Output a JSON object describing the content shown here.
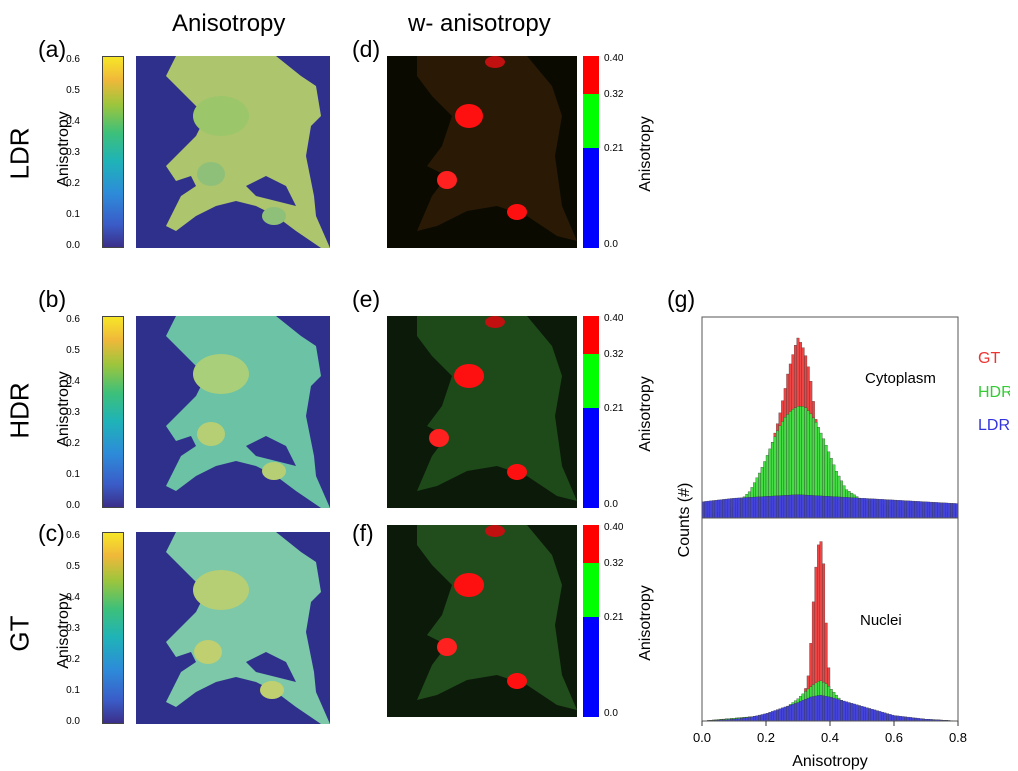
{
  "column_titles": {
    "left": "Anisotropy",
    "middle": "w- anisotropy"
  },
  "row_labels": [
    "LDR",
    "HDR",
    "GT"
  ],
  "panel_labels": {
    "a": "(a)",
    "b": "(b)",
    "c": "(c)",
    "d": "(d)",
    "e": "(e)",
    "f": "(f)",
    "g": "(g)"
  },
  "colorbar_left": {
    "axis_label": "Anisotropy",
    "ticks": [
      "0.6",
      "0.5",
      "0.4",
      "0.3",
      "0.2",
      "0.1",
      "0.0"
    ]
  },
  "colorbar_middle": {
    "axis_label": "Anisotropy",
    "ticks": [
      "0.40",
      "0.32",
      "0.21",
      "0.0"
    ],
    "colors": [
      "#ff0000",
      "#00ff00",
      "#0000ff"
    ]
  },
  "map_colors": {
    "background": "#2f2f8c",
    "ldr_cell": "#b9d36a",
    "hdr_cell": "#6cc2a4",
    "gt_cell": "#7cc8a8",
    "nucleus_ldr": "#c4d48a",
    "nucleus_hdr": "#d6cf78"
  },
  "chart_data": [
    {
      "type": "bar",
      "panel": "(g) top",
      "annotation": "Cytoplasm",
      "xlabel": "Anisotropy",
      "ylabel": "Counts (#)",
      "xlim": [
        0.0,
        0.8
      ],
      "series": [
        {
          "name": "GT",
          "color": "#ee4444",
          "x": [
            0.0,
            0.05,
            0.1,
            0.15,
            0.18,
            0.2,
            0.22,
            0.24,
            0.26,
            0.27,
            0.28,
            0.29,
            0.3,
            0.31,
            0.32,
            0.33,
            0.34,
            0.35,
            0.36,
            0.38,
            0.4,
            0.42,
            0.45,
            0.5,
            0.55,
            0.6,
            0.7,
            0.8
          ],
          "y": [
            0.02,
            0.03,
            0.05,
            0.1,
            0.18,
            0.28,
            0.42,
            0.55,
            0.72,
            0.82,
            0.88,
            0.95,
            1.0,
            0.97,
            0.93,
            0.86,
            0.76,
            0.62,
            0.5,
            0.35,
            0.22,
            0.14,
            0.08,
            0.06,
            0.05,
            0.04,
            0.03,
            0.02
          ]
        },
        {
          "name": "HDR",
          "color": "#44dd44",
          "x": [
            0.0,
            0.05,
            0.1,
            0.15,
            0.18,
            0.2,
            0.22,
            0.24,
            0.26,
            0.28,
            0.3,
            0.32,
            0.34,
            0.36,
            0.38,
            0.4,
            0.42,
            0.45,
            0.5,
            0.55,
            0.6,
            0.7,
            0.8
          ],
          "y": [
            0.02,
            0.03,
            0.06,
            0.15,
            0.25,
            0.33,
            0.42,
            0.5,
            0.56,
            0.6,
            0.62,
            0.62,
            0.58,
            0.52,
            0.44,
            0.35,
            0.26,
            0.16,
            0.1,
            0.08,
            0.06,
            0.04,
            0.03
          ]
        },
        {
          "name": "LDR",
          "color": "#4444dd",
          "x": [
            0.0,
            0.1,
            0.2,
            0.3,
            0.4,
            0.5,
            0.6,
            0.7,
            0.8
          ],
          "y": [
            0.09,
            0.11,
            0.12,
            0.13,
            0.12,
            0.11,
            0.1,
            0.09,
            0.08
          ]
        }
      ]
    },
    {
      "type": "bar",
      "panel": "(g) bottom",
      "annotation": "Nuclei",
      "xlabel": "Anisotropy",
      "ylabel": "Counts (#)",
      "xlim": [
        0.0,
        0.8
      ],
      "xticks": [
        "0.0",
        "0.2",
        "0.4",
        "0.6",
        "0.8"
      ],
      "series": [
        {
          "name": "GT",
          "color": "#ee4444",
          "x": [
            0.0,
            0.2,
            0.3,
            0.33,
            0.34,
            0.35,
            0.36,
            0.37,
            0.38,
            0.39,
            0.4,
            0.42,
            0.5,
            0.8
          ],
          "y": [
            0.0,
            0.03,
            0.08,
            0.2,
            0.42,
            0.7,
            0.92,
            1.0,
            0.85,
            0.45,
            0.18,
            0.08,
            0.02,
            0.0
          ]
        },
        {
          "name": "HDR",
          "color": "#44dd44",
          "x": [
            0.0,
            0.2,
            0.26,
            0.3,
            0.33,
            0.35,
            0.37,
            0.39,
            0.41,
            0.43,
            0.46,
            0.5,
            0.6,
            0.8
          ],
          "y": [
            0.0,
            0.03,
            0.07,
            0.12,
            0.17,
            0.2,
            0.22,
            0.2,
            0.16,
            0.12,
            0.08,
            0.05,
            0.02,
            0.0
          ]
        },
        {
          "name": "LDR",
          "color": "#4444dd",
          "x": [
            0.0,
            0.1,
            0.15,
            0.2,
            0.25,
            0.3,
            0.34,
            0.37,
            0.4,
            0.44,
            0.48,
            0.52,
            0.56,
            0.6,
            0.65,
            0.7,
            0.8
          ],
          "y": [
            0.0,
            0.01,
            0.02,
            0.04,
            0.07,
            0.1,
            0.13,
            0.14,
            0.13,
            0.11,
            0.09,
            0.07,
            0.05,
            0.03,
            0.02,
            0.01,
            0.0
          ]
        }
      ]
    }
  ]
}
